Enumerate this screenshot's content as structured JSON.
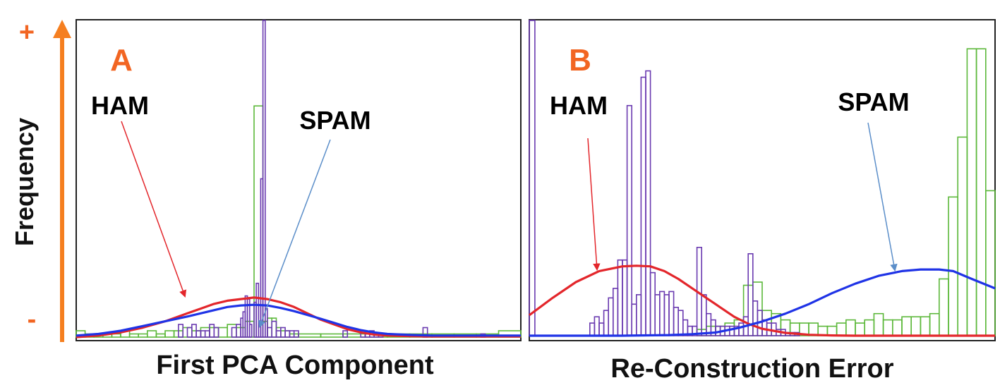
{
  "y_axis": {
    "label": "Frequency",
    "plus": "+",
    "minus": "-",
    "arrow_color": "#f57f20"
  },
  "colors": {
    "ham_curve": "#e3262b",
    "spam_curve": "#1f33e6",
    "ham_bars": "#6a3ab0",
    "spam_bars": "#5cb83a",
    "label_accent": "#f26522",
    "ham_arrow": "#e3262b",
    "spam_arrow": "#5b8ec9"
  },
  "chart_data": [
    {
      "type": "bar",
      "panel_label": "A",
      "xlabel": "First PCA Component",
      "annotations": {
        "ham": "HAM",
        "spam": "SPAM"
      },
      "xlim": [
        0,
        100
      ],
      "ylim": [
        0,
        100
      ],
      "grid": false,
      "series": [
        {
          "name": "HAM",
          "kind": "histogram",
          "bins": [
            [
              23,
              24,
              4
            ],
            [
              25,
              26,
              3
            ],
            [
              26,
              27,
              4
            ],
            [
              27,
              28,
              2
            ],
            [
              28,
              29,
              2
            ],
            [
              29,
              30,
              2
            ],
            [
              30,
              31,
              4
            ],
            [
              31,
              32,
              3
            ],
            [
              35,
              36,
              3
            ],
            [
              36,
              37,
              4
            ],
            [
              37,
              37.5,
              6
            ],
            [
              37.5,
              38,
              8
            ],
            [
              38,
              38.5,
              13
            ],
            [
              38.5,
              39,
              12
            ],
            [
              39,
              39.5,
              4
            ],
            [
              40,
              40.5,
              11
            ],
            [
              40.5,
              41,
              17
            ],
            [
              41,
              41.5,
              10
            ],
            [
              41.5,
              42,
              50
            ],
            [
              42,
              42.5,
              100
            ],
            [
              42.5,
              43,
              9
            ],
            [
              43,
              44,
              3
            ],
            [
              44,
              45,
              5
            ],
            [
              45,
              46,
              2
            ],
            [
              46,
              47,
              3
            ],
            [
              47,
              48,
              2
            ],
            [
              48,
              49,
              2
            ],
            [
              49,
              50,
              2
            ],
            [
              60,
              61,
              2
            ],
            [
              64,
              65,
              2
            ],
            [
              65,
              66,
              1
            ],
            [
              66,
              67,
              2
            ],
            [
              67,
              68,
              1
            ],
            [
              68,
              69,
              1
            ],
            [
              78,
              79,
              3
            ],
            [
              91,
              92,
              1
            ]
          ]
        },
        {
          "name": "SPAM",
          "kind": "histogram",
          "bins": [
            [
              0,
              2,
              2
            ],
            [
              2,
              4,
              1
            ],
            [
              4,
              6,
              1
            ],
            [
              6,
              8,
              1
            ],
            [
              8,
              10,
              1
            ],
            [
              10,
              12,
              2
            ],
            [
              12,
              14,
              1
            ],
            [
              14,
              16,
              1
            ],
            [
              16,
              18,
              2
            ],
            [
              18,
              20,
              1
            ],
            [
              20,
              22,
              2
            ],
            [
              22,
              24,
              2
            ],
            [
              24,
              26,
              3
            ],
            [
              26,
              28,
              2
            ],
            [
              28,
              30,
              3
            ],
            [
              30,
              32,
              3
            ],
            [
              32,
              34,
              3
            ],
            [
              34,
              36,
              4
            ],
            [
              36,
              38,
              3
            ],
            [
              38,
              40,
              5
            ],
            [
              40,
              42,
              73
            ],
            [
              42,
              43,
              5
            ],
            [
              43,
              44,
              6
            ],
            [
              44,
              45,
              6
            ],
            [
              45,
              46,
              3
            ],
            [
              46,
              48,
              2
            ],
            [
              48,
              50,
              1
            ],
            [
              50,
              55,
              1
            ],
            [
              55,
              60,
              1
            ],
            [
              60,
              65,
              1
            ],
            [
              65,
              70,
              1
            ],
            [
              70,
              75,
              1
            ],
            [
              75,
              80,
              1
            ],
            [
              80,
              85,
              1
            ],
            [
              85,
              90,
              1
            ],
            [
              90,
              95,
              1
            ],
            [
              95,
              100,
              2
            ]
          ]
        },
        {
          "name": "HAM fit",
          "kind": "curve",
          "x": [
            0,
            5,
            10,
            15,
            20,
            25,
            28,
            31,
            34,
            37,
            40,
            43,
            46,
            49,
            52,
            55,
            58,
            61,
            64,
            67,
            70,
            75,
            80,
            85,
            90,
            95,
            100
          ],
          "y": [
            0,
            0.5,
            1.5,
            3,
            5,
            7.5,
            9,
            10.5,
            11.5,
            12,
            12.5,
            12,
            11,
            9.5,
            7.5,
            5.5,
            4,
            2.5,
            1.5,
            0.8,
            0.5,
            0.3,
            0.2,
            0.2,
            0.2,
            0.2,
            0.2
          ]
        },
        {
          "name": "SPAM fit",
          "kind": "curve",
          "x": [
            0,
            5,
            10,
            15,
            20,
            25,
            28,
            31,
            34,
            37,
            40,
            43,
            46,
            49,
            52,
            55,
            58,
            61,
            64,
            67,
            70,
            75,
            80,
            85,
            90,
            95,
            100
          ],
          "y": [
            0.5,
            1,
            2,
            3.5,
            5,
            6.5,
            7.5,
            8.5,
            9.5,
            10,
            10.2,
            10,
            9.2,
            8.2,
            7,
            5.8,
            4.5,
            3.2,
            2.2,
            1.5,
            1,
            0.7,
            0.5,
            0.5,
            0.5,
            0.5,
            0.5
          ]
        }
      ]
    },
    {
      "type": "bar",
      "panel_label": "B",
      "xlabel": "Re-Construction Error",
      "annotations": {
        "ham": "HAM",
        "spam": "SPAM"
      },
      "xlim": [
        0,
        100
      ],
      "ylim": [
        0,
        100
      ],
      "grid": false,
      "series": [
        {
          "name": "HAM",
          "kind": "histogram",
          "bins": [
            [
              0,
              1.2,
              100
            ],
            [
              13,
              14,
              4
            ],
            [
              14,
              15,
              6
            ],
            [
              15,
              16,
              4
            ],
            [
              16,
              17,
              8
            ],
            [
              17,
              18,
              12
            ],
            [
              18,
              19,
              15
            ],
            [
              19,
              20,
              24
            ],
            [
              20,
              21,
              24
            ],
            [
              21,
              22,
              73
            ],
            [
              22,
              23,
              10
            ],
            [
              23,
              24,
              13
            ],
            [
              24,
              25,
              82
            ],
            [
              25,
              26,
              84
            ],
            [
              26,
              27,
              20
            ],
            [
              27,
              28,
              13
            ],
            [
              28,
              29,
              14
            ],
            [
              29,
              30,
              13
            ],
            [
              30,
              31,
              14
            ],
            [
              31,
              32,
              9
            ],
            [
              32,
              33,
              8
            ],
            [
              33,
              34,
              5
            ],
            [
              34,
              35,
              3
            ],
            [
              35,
              36,
              3
            ],
            [
              36,
              37,
              28
            ],
            [
              37,
              38,
              13
            ],
            [
              38,
              39,
              7
            ],
            [
              39,
              40,
              5
            ],
            [
              40,
              41,
              3
            ],
            [
              41,
              42,
              3
            ],
            [
              42,
              43,
              3
            ],
            [
              43,
              44,
              3
            ],
            [
              44,
              45,
              3
            ],
            [
              45,
              46,
              4
            ],
            [
              46,
              47,
              6
            ],
            [
              47,
              48,
              26
            ],
            [
              48,
              49,
              11
            ],
            [
              49,
              50,
              8
            ],
            [
              50,
              51,
              5
            ],
            [
              51,
              52,
              4
            ],
            [
              52,
              53,
              4
            ],
            [
              53,
              54,
              2
            ],
            [
              54,
              55,
              2
            ],
            [
              55,
              56,
              1
            ],
            [
              56,
              57,
              1
            ],
            [
              57,
              58,
              1
            ]
          ]
        },
        {
          "name": "SPAM",
          "kind": "histogram",
          "bins": [
            [
              36,
              38,
              2
            ],
            [
              38,
              40,
              3
            ],
            [
              40,
              42,
              3
            ],
            [
              42,
              44,
              4
            ],
            [
              44,
              46,
              5
            ],
            [
              46,
              48,
              16
            ],
            [
              48,
              50,
              17
            ],
            [
              50,
              52,
              8
            ],
            [
              52,
              54,
              7
            ],
            [
              54,
              56,
              5
            ],
            [
              56,
              58,
              4
            ],
            [
              58,
              60,
              4
            ],
            [
              60,
              62,
              4
            ],
            [
              62,
              64,
              3
            ],
            [
              64,
              66,
              3
            ],
            [
              66,
              68,
              4
            ],
            [
              68,
              70,
              5
            ],
            [
              70,
              72,
              4
            ],
            [
              72,
              74,
              5
            ],
            [
              74,
              76,
              7
            ],
            [
              76,
              78,
              5
            ],
            [
              78,
              80,
              5
            ],
            [
              80,
              82,
              6
            ],
            [
              82,
              84,
              6
            ],
            [
              84,
              86,
              6
            ],
            [
              86,
              88,
              7
            ],
            [
              88,
              90,
              18
            ],
            [
              90,
              92,
              44
            ],
            [
              92,
              94,
              63
            ],
            [
              94,
              96,
              91
            ],
            [
              96,
              98,
              91
            ],
            [
              98,
              100,
              46
            ]
          ]
        },
        {
          "name": "HAM fit",
          "kind": "curve",
          "x": [
            0,
            5,
            10,
            15,
            20,
            23,
            26,
            29,
            32,
            35,
            38,
            41,
            44,
            47,
            50,
            55,
            60,
            65,
            70,
            75,
            80,
            85,
            90,
            95,
            100
          ],
          "y": [
            6.5,
            12,
            17,
            20.5,
            22,
            22.2,
            22,
            20.5,
            18,
            15,
            12,
            9,
            6,
            3.8,
            2.2,
            0.9,
            0.3,
            0.1,
            0,
            0,
            0,
            0,
            0,
            0,
            0
          ]
        },
        {
          "name": "SPAM fit",
          "kind": "curve",
          "x": [
            0,
            20,
            30,
            35,
            40,
            45,
            50,
            55,
            60,
            65,
            70,
            75,
            80,
            84,
            88,
            91,
            95,
            100
          ],
          "y": [
            0,
            0,
            0.2,
            0.5,
            1,
            2.5,
            4.5,
            7,
            10,
            13.5,
            16.5,
            19,
            20.5,
            21,
            21,
            20.5,
            18,
            15
          ]
        }
      ]
    }
  ]
}
